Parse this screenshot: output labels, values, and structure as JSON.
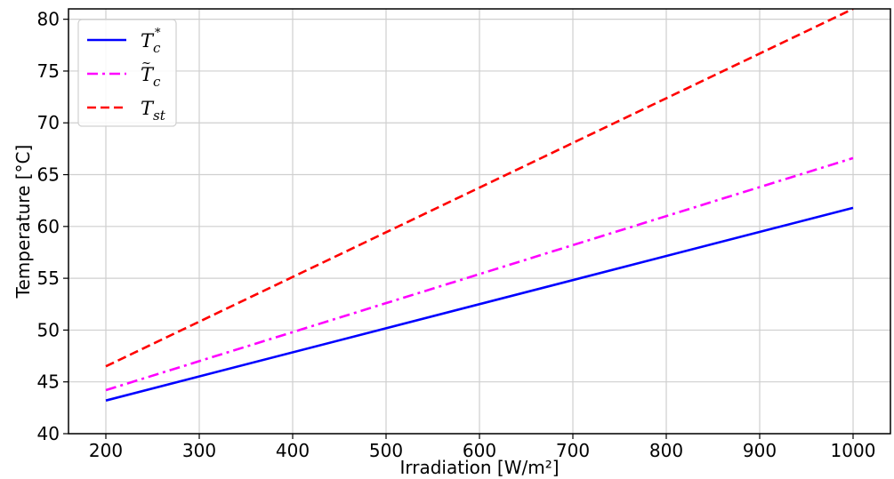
{
  "chart_data": {
    "type": "line",
    "xlabel": "Irradiation [W/m²]",
    "ylabel": "Temperature [°C]",
    "xlim": [
      160,
      1040
    ],
    "ylim": [
      40,
      81
    ],
    "x_ticks": [
      200,
      300,
      400,
      500,
      600,
      700,
      800,
      900,
      1000
    ],
    "y_ticks": [
      40,
      45,
      50,
      55,
      60,
      65,
      70,
      75,
      80
    ],
    "grid": true,
    "legend_position": "top-left",
    "series": [
      {
        "name": "Tc*",
        "legend": {
          "main": "T",
          "sub": "c",
          "sup": "*",
          "accent": ""
        },
        "color": "#0000ff",
        "style": "solid",
        "x": [
          200,
          1000
        ],
        "y": [
          43.2,
          61.8
        ]
      },
      {
        "name": "T̃c",
        "legend": {
          "main": "T",
          "sub": "c",
          "sup": "",
          "accent": "~"
        },
        "color": "#ff00ff",
        "style": "dashdot",
        "x": [
          200,
          1000
        ],
        "y": [
          44.2,
          66.6
        ]
      },
      {
        "name": "Tst",
        "legend": {
          "main": "T",
          "sub": "st",
          "sup": "",
          "accent": ""
        },
        "color": "#ff0000",
        "style": "dashed",
        "x": [
          200,
          1000
        ],
        "y": [
          46.5,
          81.0
        ]
      }
    ]
  }
}
